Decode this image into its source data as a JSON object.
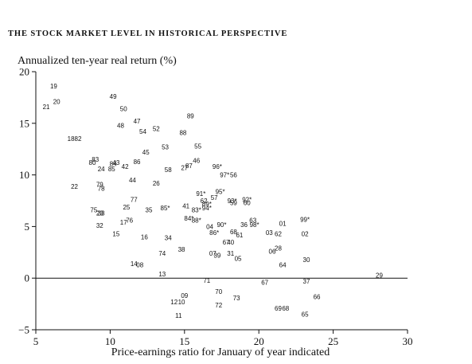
{
  "title": "THE STOCK MARKET LEVEL IN HISTORICAL PERSPECTIVE",
  "chart_data": {
    "type": "scatter",
    "title": "THE STOCK MARKET LEVEL IN HISTORICAL PERSPECTIVE",
    "xlabel": "Price-earnings ratio for January of year indicated",
    "ylabel": "Annualized ten-year real return (%)",
    "xlim": [
      5,
      30
    ],
    "ylim": [
      -5,
      20
    ],
    "x_ticks": [
      "5",
      "10",
      "15",
      "20",
      "25",
      "30"
    ],
    "y_ticks": [
      "−5",
      "0",
      "5",
      "10",
      "15",
      "20"
    ],
    "grid": false,
    "points": [
      {
        "label": "19",
        "x": 6.2,
        "y": 18.6
      },
      {
        "label": "21",
        "x": 5.7,
        "y": 16.6
      },
      {
        "label": "20",
        "x": 6.4,
        "y": 17.1
      },
      {
        "label": "1882",
        "x": 7.6,
        "y": 13.5
      },
      {
        "label": "49",
        "x": 10.2,
        "y": 17.6
      },
      {
        "label": "50",
        "x": 10.9,
        "y": 16.4
      },
      {
        "label": "47",
        "x": 11.8,
        "y": 15.2
      },
      {
        "label": "48",
        "x": 10.7,
        "y": 14.8
      },
      {
        "label": "54",
        "x": 12.2,
        "y": 14.2
      },
      {
        "label": "52",
        "x": 13.1,
        "y": 14.5
      },
      {
        "label": "88",
        "x": 14.9,
        "y": 14.1
      },
      {
        "label": "89",
        "x": 15.4,
        "y": 15.7
      },
      {
        "label": "53",
        "x": 13.7,
        "y": 12.7
      },
      {
        "label": "55",
        "x": 15.9,
        "y": 12.8
      },
      {
        "label": "45",
        "x": 12.4,
        "y": 12.2
      },
      {
        "label": "86",
        "x": 11.8,
        "y": 11.3
      },
      {
        "label": "43",
        "x": 10.4,
        "y": 11.2
      },
      {
        "label": "84",
        "x": 10.2,
        "y": 11.1
      },
      {
        "label": "42",
        "x": 11.0,
        "y": 10.8
      },
      {
        "label": "85",
        "x": 10.1,
        "y": 10.6
      },
      {
        "label": "24",
        "x": 9.4,
        "y": 10.6
      },
      {
        "label": "83",
        "x": 9.0,
        "y": 11.5
      },
      {
        "label": "80",
        "x": 8.8,
        "y": 11.2
      },
      {
        "label": "46",
        "x": 15.8,
        "y": 11.4
      },
      {
        "label": "87",
        "x": 15.3,
        "y": 10.9
      },
      {
        "label": "27",
        "x": 15.0,
        "y": 10.7
      },
      {
        "label": "58",
        "x": 13.9,
        "y": 10.5
      },
      {
        "label": "96*",
        "x": 17.2,
        "y": 10.8
      },
      {
        "label": "97*",
        "x": 17.7,
        "y": 10.0
      },
      {
        "label": "56",
        "x": 18.3,
        "y": 10.0
      },
      {
        "label": "44",
        "x": 11.5,
        "y": 9.5
      },
      {
        "label": "26",
        "x": 13.1,
        "y": 9.2
      },
      {
        "label": "22",
        "x": 7.6,
        "y": 8.9
      },
      {
        "label": "79",
        "x": 9.3,
        "y": 9.1
      },
      {
        "label": "78",
        "x": 9.4,
        "y": 8.7
      },
      {
        "label": "77",
        "x": 11.6,
        "y": 7.6
      },
      {
        "label": "25",
        "x": 11.1,
        "y": 6.9
      },
      {
        "label": "75",
        "x": 8.9,
        "y": 6.6
      },
      {
        "label": "23",
        "x": 9.3,
        "y": 6.3
      },
      {
        "label": "33",
        "x": 9.4,
        "y": 6.3
      },
      {
        "label": "35",
        "x": 12.6,
        "y": 6.6
      },
      {
        "label": "85*",
        "x": 13.7,
        "y": 6.8
      },
      {
        "label": "41",
        "x": 15.1,
        "y": 7.0
      },
      {
        "label": "91*",
        "x": 16.1,
        "y": 8.2
      },
      {
        "label": "95*",
        "x": 17.4,
        "y": 8.4
      },
      {
        "label": "57",
        "x": 17.0,
        "y": 7.8
      },
      {
        "label": "62",
        "x": 16.3,
        "y": 7.5
      },
      {
        "label": "89*",
        "x": 16.5,
        "y": 7.2
      },
      {
        "label": "83*",
        "x": 15.8,
        "y": 6.6
      },
      {
        "label": "94*",
        "x": 16.5,
        "y": 6.8
      },
      {
        "label": "93*",
        "x": 18.2,
        "y": 7.5
      },
      {
        "label": "59",
        "x": 18.3,
        "y": 7.3
      },
      {
        "label": "92*",
        "x": 19.2,
        "y": 7.6
      },
      {
        "label": "60",
        "x": 19.2,
        "y": 7.3
      },
      {
        "label": "84*",
        "x": 15.3,
        "y": 5.8
      },
      {
        "label": "88*",
        "x": 15.8,
        "y": 5.6
      },
      {
        "label": "76",
        "x": 11.3,
        "y": 5.6
      },
      {
        "label": "17",
        "x": 10.9,
        "y": 5.4
      },
      {
        "label": "32",
        "x": 9.3,
        "y": 5.1
      },
      {
        "label": "15",
        "x": 10.4,
        "y": 4.3
      },
      {
        "label": "16",
        "x": 12.3,
        "y": 4.0
      },
      {
        "label": "34",
        "x": 13.9,
        "y": 3.9
      },
      {
        "label": "90*",
        "x": 17.5,
        "y": 5.2
      },
      {
        "label": "04",
        "x": 16.7,
        "y": 5.0
      },
      {
        "label": "36",
        "x": 19.0,
        "y": 5.2
      },
      {
        "label": "63",
        "x": 19.6,
        "y": 5.6
      },
      {
        "label": "98*",
        "x": 19.7,
        "y": 5.2
      },
      {
        "label": "01",
        "x": 21.6,
        "y": 5.3
      },
      {
        "label": "99*",
        "x": 23.1,
        "y": 5.7
      },
      {
        "label": "86*",
        "x": 17.0,
        "y": 4.4
      },
      {
        "label": "68",
        "x": 18.3,
        "y": 4.5
      },
      {
        "label": "61",
        "x": 18.7,
        "y": 4.2
      },
      {
        "label": "03",
        "x": 20.7,
        "y": 4.4
      },
      {
        "label": "62",
        "x": 21.3,
        "y": 4.3
      },
      {
        "label": "02",
        "x": 23.1,
        "y": 4.3
      },
      {
        "label": "67",
        "x": 17.8,
        "y": 3.5
      },
      {
        "label": "40",
        "x": 18.1,
        "y": 3.5
      },
      {
        "label": "74",
        "x": 13.5,
        "y": 2.4
      },
      {
        "label": "38",
        "x": 14.8,
        "y": 2.8
      },
      {
        "label": "07",
        "x": 16.9,
        "y": 2.4
      },
      {
        "label": "39",
        "x": 17.2,
        "y": 2.2
      },
      {
        "label": "31",
        "x": 18.1,
        "y": 2.4
      },
      {
        "label": "05",
        "x": 18.6,
        "y": 1.9
      },
      {
        "label": "28",
        "x": 21.3,
        "y": 2.9
      },
      {
        "label": "06",
        "x": 20.9,
        "y": 2.6
      },
      {
        "label": "30",
        "x": 23.2,
        "y": 1.8
      },
      {
        "label": "64",
        "x": 21.6,
        "y": 1.3
      },
      {
        "label": "14",
        "x": 11.6,
        "y": 1.4
      },
      {
        "label": "08",
        "x": 12.0,
        "y": 1.3
      },
      {
        "label": "13",
        "x": 13.5,
        "y": 0.4
      },
      {
        "label": "71",
        "x": 16.5,
        "y": -0.2
      },
      {
        "label": "67",
        "x": 20.4,
        "y": -0.4
      },
      {
        "label": "37",
        "x": 23.2,
        "y": -0.3
      },
      {
        "label": "29",
        "x": 28.1,
        "y": 0.3
      },
      {
        "label": "70",
        "x": 17.3,
        "y": -1.3
      },
      {
        "label": "09",
        "x": 15.0,
        "y": -1.7
      },
      {
        "label": "73",
        "x": 18.5,
        "y": -1.9
      },
      {
        "label": "66",
        "x": 23.9,
        "y": -1.8
      },
      {
        "label": "12",
        "x": 14.3,
        "y": -2.3
      },
      {
        "label": "10",
        "x": 14.8,
        "y": -2.3
      },
      {
        "label": "72",
        "x": 17.3,
        "y": -2.6
      },
      {
        "label": "69",
        "x": 21.3,
        "y": -2.9
      },
      {
        "label": "68",
        "x": 21.8,
        "y": -2.9
      },
      {
        "label": "11",
        "x": 14.6,
        "y": -3.6
      },
      {
        "label": "65",
        "x": 23.1,
        "y": -3.5
      }
    ]
  }
}
